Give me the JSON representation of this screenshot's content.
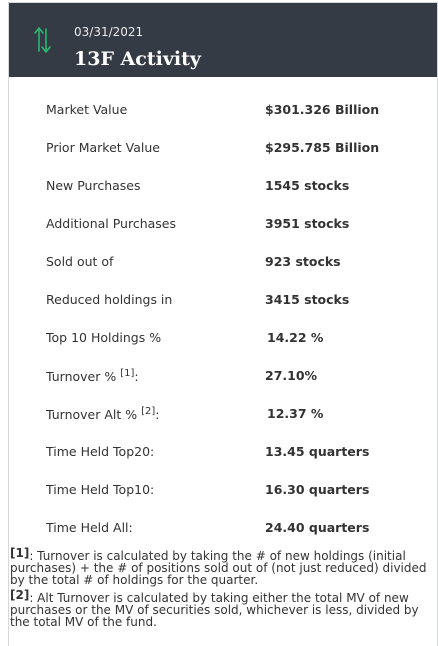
{
  "header": {
    "date": "03/31/2021",
    "title": "13F Activity",
    "icon": "up-down-arrows-icon",
    "icon_color": "#2bb673"
  },
  "rows": [
    {
      "label": "Market Value",
      "value": "$301.326 Billion"
    },
    {
      "label": "Prior Market Value",
      "value": "$295.785 Billion"
    },
    {
      "label": "New Purchases",
      "value": "1545 stocks"
    },
    {
      "label": "Additional Purchases",
      "value": "3951 stocks"
    },
    {
      "label": "Sold out of",
      "value": "923 stocks"
    },
    {
      "label": "Reduced holdings in",
      "value": "3415 stocks"
    },
    {
      "label": "Top 10 Holdings %",
      "value": "14.22 %"
    },
    {
      "label": "Turnover %",
      "ref": "[1]",
      "suffix": ":",
      "value": "27.10%"
    },
    {
      "label": "Turnover Alt %",
      "ref": "[2]",
      "suffix": ":",
      "value": "12.37 %"
    },
    {
      "label": "Time Held Top20:",
      "value": "13.45 quarters"
    },
    {
      "label": "Time Held Top10:",
      "value": "16.30 quarters"
    },
    {
      "label": "Time Held All:",
      "value": "24.40 quarters"
    }
  ],
  "footnotes": [
    {
      "mark": "[1]",
      "text": ": Turnover is calculated by taking the # of new holdings (initial purchases) + the # of positions sold out of (not just reduced) divided by the total # of holdings for the quarter."
    },
    {
      "mark": "[2]",
      "text": ": Alt Turnover is calculated by taking either the total MV of new purchases or the MV of securities sold, whichever is less, divided by the total MV of the fund."
    }
  ]
}
